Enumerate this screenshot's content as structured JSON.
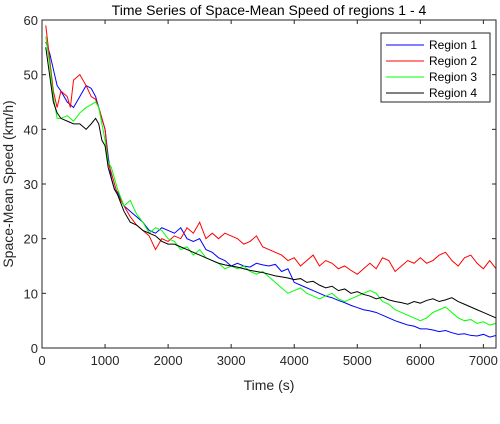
{
  "chart_data": {
    "type": "line",
    "title": "Time Series of Space-Mean Speed of regions 1 - 4",
    "xlabel": "Time (s)",
    "ylabel": "Space-Mean Speed (km/h)",
    "xlim": [
      0,
      7200
    ],
    "ylim": [
      0,
      60
    ],
    "xticks": [
      0,
      1000,
      2000,
      3000,
      4000,
      5000,
      6000,
      7000
    ],
    "yticks": [
      0,
      10,
      20,
      30,
      40,
      50,
      60
    ],
    "grid": false,
    "legend_position": "top-right",
    "series": [
      {
        "name": "Region 1",
        "color": "#0000ff",
        "x": [
          60,
          120,
          180,
          240,
          300,
          400,
          500,
          600,
          700,
          780,
          850,
          900,
          950,
          1000,
          1050,
          1100,
          1150,
          1200,
          1300,
          1400,
          1500,
          1600,
          1700,
          1800,
          1900,
          2000,
          2100,
          2200,
          2300,
          2400,
          2500,
          2600,
          2700,
          2800,
          2900,
          3000,
          3100,
          3200,
          3300,
          3400,
          3500,
          3600,
          3700,
          3800,
          3900,
          4000,
          4100,
          4200,
          4300,
          4400,
          4500,
          4600,
          4700,
          4800,
          4900,
          5000,
          5100,
          5200,
          5300,
          5400,
          5500,
          5600,
          5700,
          5800,
          5900,
          6000,
          6100,
          6200,
          6300,
          6400,
          6500,
          6600,
          6700,
          6800,
          6900,
          7000,
          7100,
          7200
        ],
        "y": [
          56,
          54,
          51,
          48,
          47,
          45,
          44,
          46,
          48,
          47.5,
          46,
          44,
          42,
          40,
          35,
          31,
          29,
          28.5,
          26,
          25,
          24,
          23,
          21.5,
          21,
          22,
          21.5,
          21,
          22,
          20,
          19.5,
          20,
          18,
          17.5,
          16.5,
          16,
          15,
          15.5,
          15,
          14.8,
          15.5,
          15.2,
          15,
          15.3,
          14,
          14.5,
          12,
          11.5,
          11,
          10.5,
          10,
          9.5,
          9.2,
          8.7,
          8.3,
          7.8,
          7.4,
          7,
          6.8,
          6.5,
          6,
          5.5,
          5,
          4.6,
          4.2,
          4,
          3.5,
          3.5,
          3.3,
          3,
          3.2,
          2.8,
          2.5,
          2.6,
          2.3,
          2.2,
          2.5,
          2,
          2.3
        ]
      },
      {
        "name": "Region 2",
        "color": "#ff0000",
        "x": [
          60,
          120,
          180,
          240,
          300,
          400,
          450,
          500,
          550,
          600,
          700,
          780,
          850,
          900,
          950,
          1000,
          1050,
          1100,
          1150,
          1200,
          1300,
          1400,
          1500,
          1600,
          1700,
          1800,
          1900,
          2000,
          2100,
          2200,
          2300,
          2400,
          2500,
          2600,
          2700,
          2800,
          2900,
          3000,
          3100,
          3200,
          3300,
          3400,
          3500,
          3600,
          3700,
          3800,
          3900,
          4000,
          4100,
          4200,
          4300,
          4400,
          4500,
          4600,
          4700,
          4800,
          4900,
          5000,
          5100,
          5200,
          5300,
          5400,
          5500,
          5600,
          5700,
          5800,
          5900,
          6000,
          6100,
          6200,
          6300,
          6400,
          6500,
          6600,
          6700,
          6800,
          6900,
          7000,
          7100,
          7200
        ],
        "y": [
          59,
          53,
          47,
          44,
          47,
          46,
          44,
          49,
          49.5,
          50,
          48,
          46,
          45.5,
          44,
          42,
          40,
          34,
          32,
          30,
          28,
          26,
          24,
          22.5,
          21.5,
          20.5,
          18,
          20,
          19.5,
          20.5,
          20,
          22,
          21,
          23,
          20,
          21,
          20,
          21,
          20.5,
          20,
          19,
          19.5,
          20.5,
          18.5,
          18,
          17.5,
          17,
          16,
          16.5,
          15,
          16,
          17,
          15,
          16,
          15.5,
          14.5,
          15,
          14.2,
          13.5,
          14.5,
          15.5,
          14.5,
          16.5,
          16,
          14,
          15,
          16,
          15.5,
          16.5,
          15.5,
          16,
          17,
          17.5,
          16,
          15,
          16.5,
          17,
          15.5,
          14.5,
          16,
          14.5
        ]
      },
      {
        "name": "Region 3",
        "color": "#00ff00",
        "x": [
          60,
          120,
          180,
          240,
          300,
          400,
          500,
          600,
          700,
          780,
          850,
          900,
          950,
          1000,
          1050,
          1100,
          1150,
          1200,
          1300,
          1400,
          1500,
          1600,
          1700,
          1800,
          1900,
          2000,
          2100,
          2200,
          2300,
          2400,
          2500,
          2600,
          2700,
          2800,
          2900,
          3000,
          3100,
          3200,
          3300,
          3400,
          3500,
          3600,
          3700,
          3800,
          3900,
          4000,
          4100,
          4200,
          4300,
          4400,
          4500,
          4600,
          4700,
          4800,
          4900,
          5000,
          5100,
          5200,
          5300,
          5400,
          5500,
          5600,
          5700,
          5800,
          5900,
          6000,
          6100,
          6200,
          6300,
          6400,
          6500,
          6600,
          6700,
          6800,
          6900,
          7000,
          7100,
          7200
        ],
        "y": [
          57,
          52,
          46,
          42,
          42,
          42.5,
          41.5,
          43,
          44,
          44.5,
          45,
          44,
          41,
          38,
          34,
          33,
          31,
          29,
          26,
          27,
          24.5,
          23,
          21,
          22,
          21.5,
          20,
          19.5,
          18,
          18.5,
          17,
          18,
          16.5,
          16,
          15.5,
          14.5,
          15,
          14.5,
          15,
          14,
          13.5,
          14,
          13,
          12,
          11,
          10,
          10.5,
          11,
          10,
          9.5,
          9,
          9.5,
          10,
          9,
          8.5,
          9,
          9.5,
          10,
          10.5,
          10,
          8.5,
          8,
          7,
          6.5,
          6,
          5.5,
          5,
          5.5,
          6.5,
          7,
          7.5,
          6.5,
          5.5,
          5,
          5.2,
          4.5,
          4.8,
          4.2,
          4.5
        ]
      },
      {
        "name": "Region 4",
        "color": "#000000",
        "x": [
          60,
          120,
          180,
          240,
          300,
          400,
          500,
          600,
          700,
          780,
          850,
          900,
          950,
          1000,
          1050,
          1100,
          1150,
          1200,
          1300,
          1400,
          1500,
          1600,
          1700,
          1800,
          1900,
          2000,
          2100,
          2200,
          2300,
          2400,
          2500,
          2600,
          2700,
          2800,
          2900,
          3000,
          3100,
          3200,
          3300,
          3400,
          3500,
          3600,
          3700,
          3800,
          3900,
          4000,
          4100,
          4200,
          4300,
          4400,
          4500,
          4600,
          4700,
          4800,
          4900,
          5000,
          5100,
          5200,
          5300,
          5400,
          5500,
          5600,
          5700,
          5800,
          5900,
          6000,
          6100,
          6200,
          6300,
          6400,
          6500,
          6600,
          6700,
          6800,
          6900,
          7000,
          7100,
          7200
        ],
        "y": [
          55,
          50,
          45,
          43,
          42,
          41.5,
          41,
          41,
          40,
          41,
          42,
          41,
          38,
          37,
          33,
          31,
          29,
          28,
          25,
          23,
          22.5,
          21.5,
          21,
          20.5,
          19.5,
          19,
          19,
          18.5,
          18,
          17.5,
          17,
          16.5,
          16,
          15.5,
          15.2,
          15,
          14.8,
          14.5,
          14.2,
          14,
          13.8,
          13.5,
          13.2,
          13,
          12.8,
          12.5,
          12.7,
          12,
          12.2,
          11.5,
          11,
          11.3,
          10.5,
          10.8,
          10,
          10.3,
          9.8,
          9.5,
          9,
          9.3,
          8.8,
          8.5,
          8.3,
          8,
          8.5,
          8.2,
          8.7,
          9,
          8.5,
          8.8,
          9.2,
          8.5,
          8,
          7.5,
          7,
          6.5,
          6,
          5.5
        ]
      }
    ]
  }
}
